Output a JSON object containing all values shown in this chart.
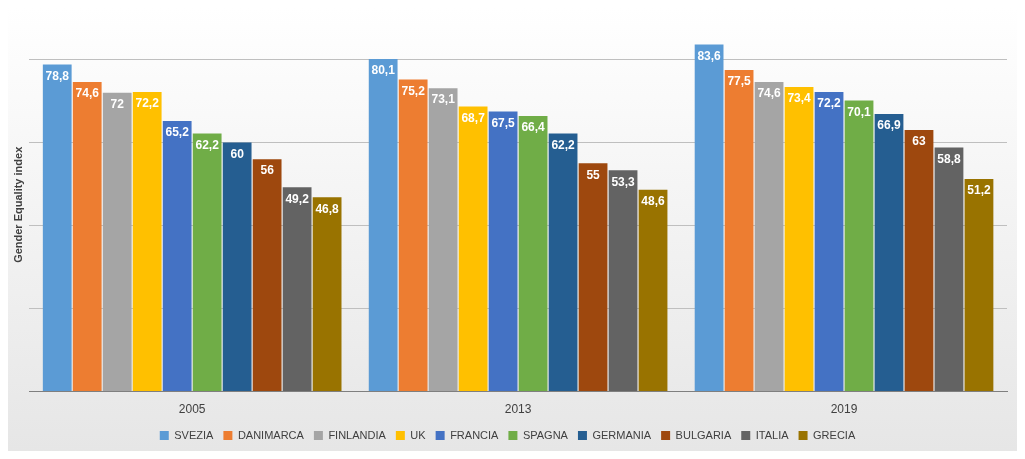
{
  "chart_data": {
    "type": "bar",
    "ylabel": "Gender Equality index",
    "categories": [
      "2005",
      "2013",
      "2019"
    ],
    "series": [
      {
        "name": "SVEZIA",
        "color": "#5b9bd5",
        "values": [
          78.8,
          80.1,
          83.6
        ],
        "value_labels": [
          "78,8",
          "80,1",
          "83,6"
        ]
      },
      {
        "name": "DANIMARCA",
        "color": "#ed7d31",
        "values": [
          74.6,
          75.2,
          77.5
        ],
        "value_labels": [
          "74,6",
          "75,2",
          "77,5"
        ]
      },
      {
        "name": "FINLANDIA",
        "color": "#a5a5a5",
        "values": [
          72,
          73.1,
          74.6
        ],
        "value_labels": [
          "72",
          "73,1",
          "74,6"
        ]
      },
      {
        "name": "UK",
        "color": "#ffc000",
        "values": [
          72.2,
          68.7,
          73.4
        ],
        "value_labels": [
          "72,2",
          "68,7",
          "73,4"
        ]
      },
      {
        "name": "FRANCIA",
        "color": "#4472c4",
        "values": [
          65.2,
          67.5,
          72.2
        ],
        "value_labels": [
          "65,2",
          "67,5",
          "72,2"
        ]
      },
      {
        "name": "SPAGNA",
        "color": "#70ad47",
        "values": [
          62.2,
          66.4,
          70.1
        ],
        "value_labels": [
          "62,2",
          "66,4",
          "70,1"
        ]
      },
      {
        "name": "GERMANIA",
        "color": "#255e91",
        "values": [
          60,
          62.2,
          66.9
        ],
        "value_labels": [
          "60",
          "62,2",
          "66,9"
        ]
      },
      {
        "name": "BULGARIA",
        "color": "#9e480e",
        "values": [
          56,
          55,
          63
        ],
        "value_labels": [
          "56",
          "55",
          "63"
        ]
      },
      {
        "name": "ITALIA",
        "color": "#636363",
        "values": [
          49.2,
          53.3,
          58.8
        ],
        "value_labels": [
          "49,2",
          "53,3",
          "58,8"
        ]
      },
      {
        "name": "GRECIA",
        "color": "#997300",
        "values": [
          46.8,
          48.6,
          51.2
        ],
        "value_labels": [
          "46,8",
          "48,6",
          "51,2"
        ]
      }
    ],
    "yticks": [
      {
        "value": 0,
        "label": null
      },
      {
        "value": 20,
        "label": null
      },
      {
        "value": 40,
        "label": null
      },
      {
        "value": 60,
        "label": null
      },
      {
        "value": 80,
        "label": null
      }
    ],
    "grid": "y",
    "legend": "bottom",
    "tick_labels": "x"
  }
}
